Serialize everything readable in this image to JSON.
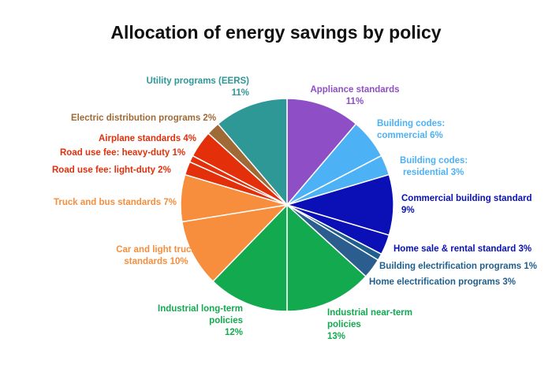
{
  "chart_data": {
    "type": "pie",
    "title": "Allocation of energy savings by policy",
    "unit": "%",
    "slices": [
      {
        "label": "Appliance standards",
        "value": 11,
        "color": "#8E4FC6"
      },
      {
        "label": "Building codes: commercial",
        "value": 6,
        "color": "#4DB1F5"
      },
      {
        "label": "Building codes: residential",
        "value": 3,
        "color": "#4DB1F5"
      },
      {
        "label": "Commercial building standard",
        "value": 9,
        "color": "#0A10B5"
      },
      {
        "label": "Home sale & rental standard",
        "value": 3,
        "color": "#0A10B5"
      },
      {
        "label": "Building electrification programs",
        "value": 1,
        "color": "#1F5F8E"
      },
      {
        "label": "Home electrification programs",
        "value": 3,
        "color": "#2C5D8F"
      },
      {
        "label": "Industrial near-term policies",
        "value": 13,
        "color": "#12A94F"
      },
      {
        "label": "Industrial long-term policies",
        "value": 12,
        "color": "#12A94F"
      },
      {
        "label": "Car and light truck standards",
        "value": 10,
        "color": "#F68E3E"
      },
      {
        "label": "Truck and bus standards",
        "value": 7,
        "color": "#F68E3E"
      },
      {
        "label": "Road use fee: light-duty",
        "value": 2,
        "color": "#E32F0A"
      },
      {
        "label": "Road use fee: heavy-duty",
        "value": 1,
        "color": "#E32F0A"
      },
      {
        "label": "Airplane standards",
        "value": 4,
        "color": "#E32F0A"
      },
      {
        "label": "Electric distribution programs",
        "value": 2,
        "color": "#A06A36"
      },
      {
        "label": "Utility programs (EERS)",
        "value": 11,
        "color": "#2E9896"
      }
    ]
  },
  "labels": {
    "appliance": {
      "name": "Appliance standards",
      "pct": "11%",
      "color": "#8E4FC6"
    },
    "codes_commercial": {
      "line1": "Building codes:",
      "line2": "commercial 6%",
      "color": "#4DB1F5"
    },
    "codes_residential": {
      "line1": "Building codes:",
      "line2": "residential 3%",
      "color": "#4DB1F5"
    },
    "commercial_building": {
      "name": "Commercial building standard",
      "pct": "9%",
      "color": "#0A10B5"
    },
    "home_sale": {
      "text": "Home sale & rental standard 3%",
      "color": "#0A10B5"
    },
    "building_electrification": {
      "text": "Building electrification programs 1%",
      "color": "#1F5F8E"
    },
    "home_electrification": {
      "text": "Home electrification programs 3%",
      "color": "#1F5F8E"
    },
    "industrial_near": {
      "line1": "Industrial near-term",
      "line2": "policies",
      "pct": "13%",
      "color": "#12A94F"
    },
    "industrial_long": {
      "line1": "Industrial long-term",
      "line2": "policies",
      "pct": "12%",
      "color": "#12A94F"
    },
    "car_light_truck": {
      "line1": "Car and light truck",
      "line2": "standards 10%",
      "color": "#F68E3E"
    },
    "truck_bus": {
      "text": "Truck and bus standards 7%",
      "color": "#F68E3E"
    },
    "road_light": {
      "text": "Road use fee: light-duty 2%",
      "color": "#E32F0A"
    },
    "road_heavy": {
      "text": "Road use fee: heavy-duty 1%",
      "color": "#E32F0A"
    },
    "airplane": {
      "text": "Airplane standards 4%",
      "color": "#E32F0A"
    },
    "electric_distribution": {
      "text": "Electric distribution programs 2%",
      "color": "#A06A36"
    },
    "utility": {
      "name": "Utility programs (EERS)",
      "pct": "11%",
      "color": "#2E9896"
    }
  }
}
